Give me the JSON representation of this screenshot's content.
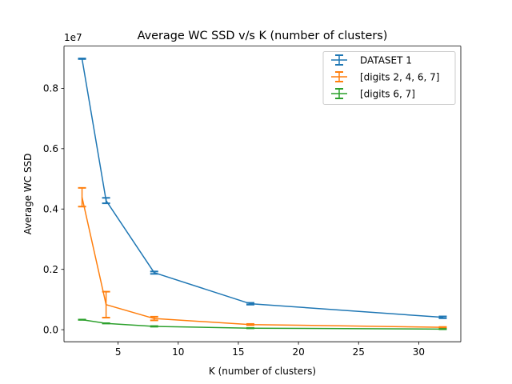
{
  "chart_data": {
    "type": "line",
    "title": "Average WC SSD v/s K (number of clusters)",
    "xlabel": "K (number of clusters)",
    "ylabel": "Average WC SSD",
    "y_offset_label": "1e7",
    "y_scale_factor": 10000000,
    "xlim": [
      0.5,
      33.5
    ],
    "ylim": [
      -400000,
      9400000
    ],
    "x_ticks": [
      5,
      10,
      15,
      20,
      25,
      30
    ],
    "x_tick_labels": [
      "5",
      "10",
      "15",
      "20",
      "25",
      "30"
    ],
    "y_ticks": [
      0,
      2000000,
      4000000,
      6000000,
      8000000
    ],
    "y_tick_labels": [
      "0.0",
      "0.2",
      "0.4",
      "0.6",
      "0.8"
    ],
    "grid": false,
    "legend_placement": "upper right",
    "x": [
      2,
      4,
      8,
      16,
      32
    ],
    "series": [
      {
        "name": "DATASET 1",
        "color": "#1f77b4",
        "values": [
          8980000,
          4280000,
          1890000,
          860000,
          410000
        ],
        "errors": [
          10000,
          90000,
          40000,
          30000,
          30000
        ]
      },
      {
        "name": "[digits 2, 4, 6, 7]",
        "color": "#ff7f0e",
        "values": [
          4390000,
          830000,
          370000,
          170000,
          80000
        ],
        "errors": [
          310000,
          430000,
          60000,
          20000,
          10000
        ]
      },
      {
        "name": "[digits 6, 7]",
        "color": "#2ca02c",
        "values": [
          330000,
          210000,
          110000,
          50000,
          20000
        ],
        "errors": [
          5000,
          5000,
          10000,
          5000,
          5000
        ]
      }
    ]
  }
}
